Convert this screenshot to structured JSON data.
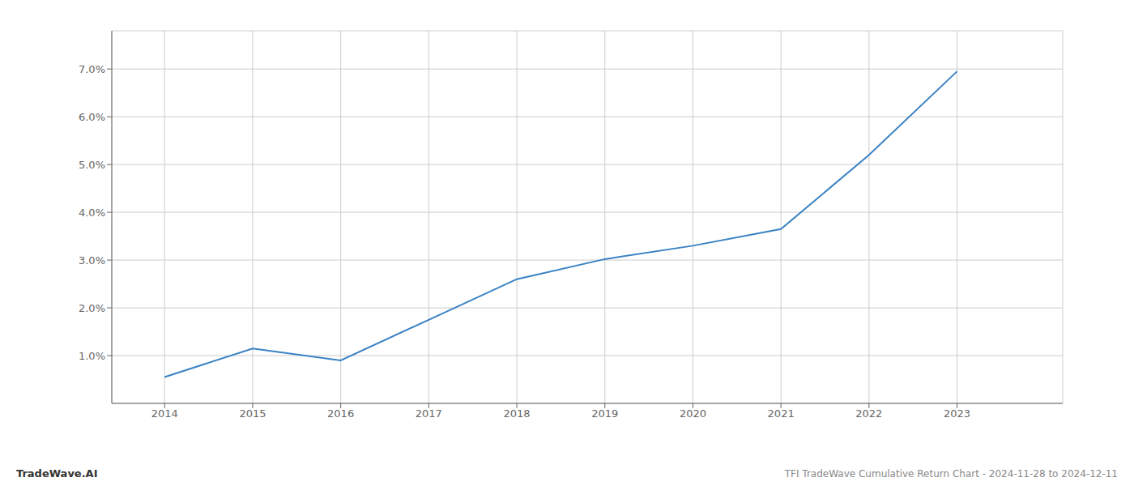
{
  "chart_data": {
    "type": "line",
    "title": "TFI TradeWave Cumulative Return Chart - 2024-11-28 to 2024-12-11",
    "annotations": [
      "TradeWave.AI"
    ],
    "x": [
      2014,
      2015,
      2016,
      2017,
      2018,
      2019,
      2020,
      2021,
      2022,
      2023
    ],
    "values": [
      0.55,
      1.15,
      0.9,
      1.75,
      2.6,
      3.02,
      3.3,
      3.65,
      5.2,
      6.95
    ],
    "color": "#3a82c4",
    "xlim": [
      2013.4,
      2024.2
    ],
    "ylim": [
      0.0,
      7.8
    ],
    "xticks": [
      2014,
      2015,
      2016,
      2017,
      2018,
      2019,
      2020,
      2021,
      2022,
      2023
    ],
    "yticks": [
      {
        "value": 1.0,
        "label": "1.0%"
      },
      {
        "value": 2.0,
        "label": "2.0%"
      },
      {
        "value": 3.0,
        "label": "3.0%"
      },
      {
        "value": 4.0,
        "label": "4.0%"
      },
      {
        "value": 5.0,
        "label": "5.0%"
      },
      {
        "value": 6.0,
        "label": "6.0%"
      },
      {
        "value": 7.0,
        "label": "7.0%"
      }
    ],
    "grid": true
  }
}
